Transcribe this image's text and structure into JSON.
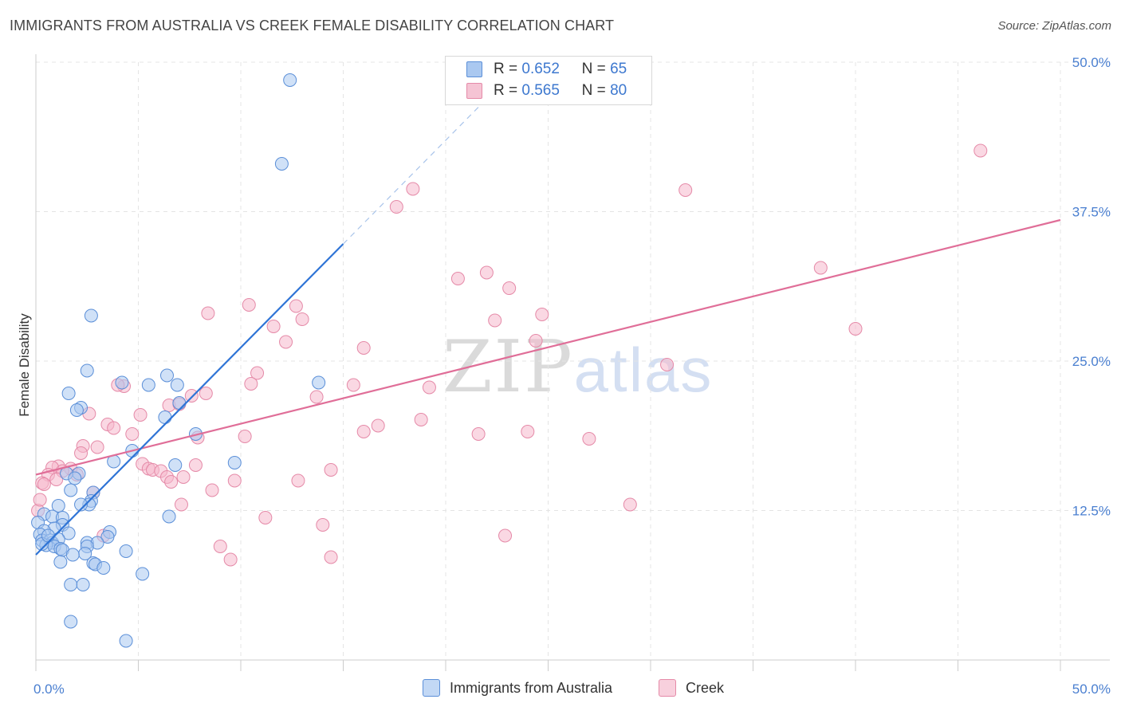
{
  "header": {
    "title": "IMMIGRANTS FROM AUSTRALIA VS CREEK FEMALE DISABILITY CORRELATION CHART",
    "source": "Source: ZipAtlas.com"
  },
  "watermark": {
    "zip": "ZIP",
    "atlas": "atlas"
  },
  "legend": {
    "series1": {
      "r_label": "R =",
      "r_value": "0.652",
      "n_label": "N =",
      "n_value": "65"
    },
    "series2": {
      "r_label": "R =",
      "r_value": "0.565",
      "n_label": "N =",
      "n_value": "80"
    }
  },
  "bottom_legend": {
    "series1": "Immigrants from Australia",
    "series2": "Creek"
  },
  "colors": {
    "blue_fill": "#aac8f0",
    "blue_stroke": "#5b8fd8",
    "blue_line": "#2f74d6",
    "pink_fill": "#f5b8cc",
    "pink_stroke": "#e58aa8",
    "pink_line": "#e06e98",
    "grid": "#e4e4e4",
    "tick_text": "#4a7fd0"
  },
  "chart_data": {
    "type": "scatter",
    "title": "IMMIGRANTS FROM AUSTRALIA VS CREEK FEMALE DISABILITY CORRELATION CHART",
    "xlabel": "",
    "ylabel": "Female Disability",
    "xlim": [
      0,
      50
    ],
    "ylim": [
      0,
      50
    ],
    "x_tick_labels": [
      "0.0%",
      "50.0%"
    ],
    "y_ticks": [
      12.5,
      25.0,
      37.5,
      50.0
    ],
    "y_tick_labels": [
      "12.5%",
      "25.0%",
      "37.5%",
      "50.0%"
    ],
    "grid": true,
    "legend_position": "top-center",
    "series": [
      {
        "name": "Immigrants from Australia",
        "R": 0.652,
        "N": 65,
        "trendline": {
          "x": [
            0,
            15
          ],
          "y": [
            8.8,
            34.8
          ]
        },
        "trendline_dashed_extension": {
          "x": [
            15,
            22.5
          ],
          "y": [
            34.8,
            47.8
          ]
        },
        "points": [
          [
            12.4,
            48.5
          ],
          [
            12.0,
            41.5
          ],
          [
            2.7,
            28.8
          ],
          [
            2.5,
            24.2
          ],
          [
            4.2,
            23.2
          ],
          [
            6.4,
            23.8
          ],
          [
            5.5,
            23.0
          ],
          [
            6.9,
            23.0
          ],
          [
            13.8,
            23.2
          ],
          [
            1.6,
            22.3
          ],
          [
            2.2,
            21.1
          ],
          [
            2.0,
            20.9
          ],
          [
            7.0,
            21.5
          ],
          [
            6.3,
            20.3
          ],
          [
            7.8,
            18.9
          ],
          [
            4.7,
            17.5
          ],
          [
            3.8,
            16.6
          ],
          [
            9.7,
            16.5
          ],
          [
            6.8,
            16.3
          ],
          [
            1.5,
            15.6
          ],
          [
            2.1,
            15.6
          ],
          [
            1.9,
            15.2
          ],
          [
            1.7,
            14.2
          ],
          [
            2.8,
            14.0
          ],
          [
            2.7,
            13.3
          ],
          [
            2.6,
            13.0
          ],
          [
            2.2,
            13.0
          ],
          [
            1.1,
            12.9
          ],
          [
            0.4,
            12.2
          ],
          [
            0.1,
            11.5
          ],
          [
            0.8,
            12.0
          ],
          [
            1.3,
            11.9
          ],
          [
            1.3,
            11.3
          ],
          [
            0.9,
            11.0
          ],
          [
            0.4,
            10.8
          ],
          [
            0.2,
            10.5
          ],
          [
            1.6,
            10.6
          ],
          [
            3.6,
            10.7
          ],
          [
            3.5,
            10.3
          ],
          [
            6.5,
            12.0
          ],
          [
            0.3,
            10.0
          ],
          [
            0.7,
            10.0
          ],
          [
            0.8,
            9.8
          ],
          [
            1.1,
            10.1
          ],
          [
            0.5,
            9.6
          ],
          [
            0.9,
            9.5
          ],
          [
            1.2,
            9.3
          ],
          [
            1.3,
            9.2
          ],
          [
            2.5,
            9.8
          ],
          [
            3.0,
            9.8
          ],
          [
            2.5,
            9.5
          ],
          [
            2.4,
            8.9
          ],
          [
            1.8,
            8.8
          ],
          [
            4.4,
            9.1
          ],
          [
            1.2,
            8.2
          ],
          [
            2.8,
            8.1
          ],
          [
            2.9,
            8.0
          ],
          [
            3.3,
            7.7
          ],
          [
            5.2,
            7.2
          ],
          [
            1.7,
            6.3
          ],
          [
            2.3,
            6.3
          ],
          [
            1.7,
            3.2
          ],
          [
            4.4,
            1.6
          ],
          [
            0.3,
            9.7
          ],
          [
            0.6,
            10.4
          ]
        ]
      },
      {
        "name": "Creek",
        "R": 0.565,
        "N": 80,
        "trendline": {
          "x": [
            0,
            50
          ],
          "y": [
            15.5,
            36.8
          ]
        },
        "points": [
          [
            46.1,
            42.6
          ],
          [
            31.7,
            39.3
          ],
          [
            18.4,
            39.4
          ],
          [
            17.6,
            37.9
          ],
          [
            22.0,
            32.4
          ],
          [
            20.6,
            31.9
          ],
          [
            23.1,
            31.1
          ],
          [
            38.3,
            32.8
          ],
          [
            10.4,
            29.7
          ],
          [
            8.4,
            29.0
          ],
          [
            24.7,
            28.9
          ],
          [
            22.4,
            28.4
          ],
          [
            13.0,
            28.5
          ],
          [
            11.6,
            27.9
          ],
          [
            40.0,
            27.7
          ],
          [
            12.2,
            26.6
          ],
          [
            24.4,
            26.7
          ],
          [
            16.0,
            26.1
          ],
          [
            30.8,
            24.7
          ],
          [
            10.8,
            24.0
          ],
          [
            10.5,
            23.1
          ],
          [
            15.5,
            23.0
          ],
          [
            19.2,
            22.8
          ],
          [
            4.3,
            22.9
          ],
          [
            4.0,
            23.0
          ],
          [
            8.3,
            22.3
          ],
          [
            13.7,
            22.0
          ],
          [
            7.6,
            22.1
          ],
          [
            6.5,
            21.3
          ],
          [
            7.0,
            21.4
          ],
          [
            5.1,
            20.5
          ],
          [
            2.6,
            20.6
          ],
          [
            18.8,
            20.1
          ],
          [
            16.7,
            19.6
          ],
          [
            3.5,
            19.7
          ],
          [
            3.8,
            19.4
          ],
          [
            16.0,
            19.1
          ],
          [
            24.0,
            19.1
          ],
          [
            21.6,
            18.9
          ],
          [
            27.0,
            18.5
          ],
          [
            10.2,
            18.7
          ],
          [
            4.7,
            18.9
          ],
          [
            7.9,
            18.6
          ],
          [
            3.0,
            17.8
          ],
          [
            2.3,
            17.9
          ],
          [
            2.2,
            17.3
          ],
          [
            7.8,
            16.3
          ],
          [
            5.2,
            16.4
          ],
          [
            5.5,
            16.0
          ],
          [
            1.1,
            16.2
          ],
          [
            1.7,
            16.0
          ],
          [
            0.8,
            16.1
          ],
          [
            1.3,
            15.8
          ],
          [
            5.7,
            15.9
          ],
          [
            14.4,
            15.9
          ],
          [
            6.1,
            15.8
          ],
          [
            0.6,
            15.5
          ],
          [
            2.0,
            15.5
          ],
          [
            6.4,
            15.3
          ],
          [
            7.2,
            15.3
          ],
          [
            9.7,
            15.0
          ],
          [
            12.8,
            15.0
          ],
          [
            6.6,
            14.9
          ],
          [
            0.3,
            14.8
          ],
          [
            8.6,
            14.2
          ],
          [
            2.8,
            14.0
          ],
          [
            7.1,
            13.0
          ],
          [
            29.0,
            13.0
          ],
          [
            0.1,
            12.5
          ],
          [
            11.2,
            11.9
          ],
          [
            14.0,
            11.3
          ],
          [
            3.3,
            10.4
          ],
          [
            22.9,
            10.4
          ],
          [
            9.0,
            9.5
          ],
          [
            9.5,
            8.4
          ],
          [
            14.4,
            8.6
          ],
          [
            0.4,
            14.7
          ],
          [
            1.0,
            15.1
          ],
          [
            0.2,
            13.4
          ],
          [
            12.7,
            29.6
          ]
        ]
      }
    ]
  }
}
